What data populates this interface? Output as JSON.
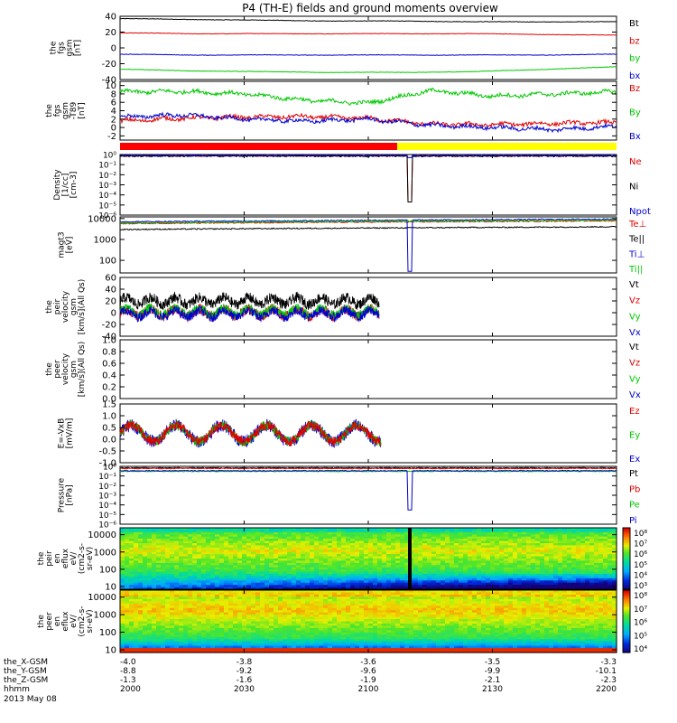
{
  "title": "P4 (TH-E) fields and ground moments overview",
  "colors": {
    "black": "#000000",
    "red": "#e00000",
    "green": "#00c800",
    "blue": "#0000d0",
    "bar_red": "#ff0000",
    "bar_yellow": "#ffff00"
  },
  "chart_data": [
    {
      "type": "line",
      "panel": "fgs_gsm",
      "ylabel": [
        "the",
        "fgs",
        "gsm",
        "[nT]"
      ],
      "ylim": [
        -40,
        40
      ],
      "yticks": [
        "40",
        "20",
        "0",
        "-20",
        "-40"
      ],
      "series": [
        {
          "name": "Bt",
          "color": "black",
          "values": [
            37,
            36,
            35,
            34,
            34,
            33,
            33,
            33
          ]
        },
        {
          "name": "bz",
          "color": "red",
          "values": [
            19,
            18,
            18,
            18,
            18,
            18,
            17,
            16
          ]
        },
        {
          "name": "by",
          "color": "green",
          "values": [
            -27,
            -29,
            -30,
            -31,
            -31,
            -30,
            -27,
            -24
          ]
        },
        {
          "name": "bx",
          "color": "blue",
          "values": [
            -8,
            -9,
            -9,
            -9,
            -9,
            -9,
            -9,
            -8
          ]
        }
      ]
    },
    {
      "type": "line",
      "panel": "fgs_gsm_t89",
      "ylabel": [
        "the",
        "fgs",
        "gsm",
        "-T89",
        "[nT]"
      ],
      "ylim": [
        -3,
        11
      ],
      "yticks": [
        "10",
        "8",
        "6",
        "4",
        "2",
        "0",
        "-2"
      ],
      "series": [
        {
          "name": "Bz",
          "color": "red",
          "values": [
            1.5,
            2.2,
            2.5,
            2.6,
            2.2,
            0.8,
            0.7,
            1.0,
            1.2
          ]
        },
        {
          "name": "By",
          "color": "green",
          "values": [
            8.5,
            8.6,
            8.0,
            6.5,
            5.8,
            8.8,
            7.5,
            8.0,
            8.5
          ]
        },
        {
          "name": "Bx",
          "color": "blue",
          "values": [
            2.5,
            3.0,
            2.0,
            1.5,
            2.0,
            0.5,
            0.0,
            -0.5,
            0.3
          ]
        }
      ]
    },
    {
      "type": "line",
      "panel": "density",
      "ylabel": [
        "Density",
        "[1/cc]",
        "[cm-3]"
      ],
      "scale": "log",
      "ylim": [
        1e-06,
        1
      ],
      "yticks": [
        "10⁰",
        "10⁻¹",
        "10⁻²",
        "10⁻³",
        "10⁻⁴",
        "10⁻⁵",
        "10⁻⁶"
      ],
      "series": [
        {
          "name": "Ne",
          "color": "red"
        },
        {
          "name": "Ni",
          "color": "black"
        },
        {
          "name": "Npot",
          "color": "blue"
        }
      ]
    },
    {
      "type": "line",
      "panel": "temperature",
      "ylabel": [
        "magt3",
        "[eV]"
      ],
      "scale": "log",
      "ylim": [
        25,
        12000
      ],
      "yticks": [
        "10000",
        "1000",
        "100"
      ],
      "series": [
        {
          "name": "Te⊥",
          "color": "red"
        },
        {
          "name": "Te||",
          "color": "black"
        },
        {
          "name": "Ti⊥",
          "color": "blue"
        },
        {
          "name": "Ti||",
          "color": "green"
        }
      ]
    },
    {
      "type": "line",
      "panel": "peir_velocity",
      "ylabel": [
        "the",
        "peir",
        "velocity",
        "gsm",
        "[km/s](All Qs)"
      ],
      "ylim": [
        -40,
        60
      ],
      "yticks": [
        "60",
        "40",
        "20",
        "0",
        "-20",
        "-40"
      ],
      "series": [
        {
          "name": "Vt",
          "color": "black"
        },
        {
          "name": "Vz",
          "color": "red"
        },
        {
          "name": "Vy",
          "color": "green"
        },
        {
          "name": "Vx",
          "color": "blue"
        }
      ]
    },
    {
      "type": "line",
      "panel": "peer_velocity",
      "ylabel": [
        "the",
        "peer",
        "velocity",
        "gsm",
        "[km/s](All Qs)"
      ],
      "ylim": [
        0,
        1
      ],
      "yticks": [
        "1.0",
        "0.8",
        "0.6",
        "0.4",
        "0.2",
        "0.0"
      ],
      "series": [
        {
          "name": "Vt",
          "color": "black"
        },
        {
          "name": "Vz",
          "color": "red"
        },
        {
          "name": "Vy",
          "color": "green"
        },
        {
          "name": "Vx",
          "color": "blue"
        }
      ]
    },
    {
      "type": "line",
      "panel": "efield",
      "ylabel": [
        "E=-VxB",
        "[mV/m]"
      ],
      "ylim": [
        -1,
        1.5
      ],
      "yticks": [
        "1.5",
        "1.0",
        "0.5",
        "0.0",
        "-0.5",
        "-1.0"
      ],
      "series": [
        {
          "name": "Ez",
          "color": "red"
        },
        {
          "name": "Ey",
          "color": "green"
        },
        {
          "name": "Ex",
          "color": "blue"
        }
      ]
    },
    {
      "type": "line",
      "panel": "pressure",
      "ylabel": [
        "Pressure",
        "[nPa]"
      ],
      "scale": "log",
      "ylim": [
        1e-06,
        1
      ],
      "yticks": [
        "10⁰",
        "10⁻¹",
        "10⁻²",
        "10⁻³",
        "10⁻⁴",
        "10⁻⁵",
        "10⁻⁶"
      ],
      "series": [
        {
          "name": "Pt",
          "color": "black"
        },
        {
          "name": "Pb",
          "color": "red"
        },
        {
          "name": "Pe",
          "color": "green"
        },
        {
          "name": "Pi",
          "color": "blue"
        }
      ]
    },
    {
      "type": "heatmap",
      "panel": "ion_spectrogram",
      "ylabel": [
        "the",
        "peir",
        "en",
        "eflux",
        "eV/",
        "(cm2-s-",
        "sr-eV)"
      ],
      "scale": "log",
      "ylim": [
        7,
        25000
      ],
      "yticks": [
        "10000",
        "1000",
        "100",
        "10"
      ],
      "colorbar_labels": [
        "10⁸",
        "10⁷",
        "10⁶",
        "10⁵",
        "10⁴",
        "10³"
      ]
    },
    {
      "type": "heatmap",
      "panel": "electron_spectrogram",
      "ylabel": [
        "the",
        "peer",
        "en",
        "eflux",
        "eV/",
        "(cm2-s-",
        "sr-eV)"
      ],
      "scale": "log",
      "ylim": [
        7,
        25000
      ],
      "yticks": [
        "10000",
        "1000",
        "100",
        "10"
      ],
      "colorbar_labels": [
        "10⁸",
        "10⁷",
        "10⁶",
        "10⁵",
        "10⁴"
      ]
    }
  ],
  "axis": {
    "rows": [
      {
        "label": "the_X-GSM",
        "values": [
          "-4.0",
          "-3.8",
          "-3.6",
          "-3.5",
          "-3.3"
        ]
      },
      {
        "label": "the_Y-GSM",
        "values": [
          "-8.8",
          "-9.2",
          "-9.6",
          "-9.9",
          "-10.1"
        ]
      },
      {
        "label": "the_Z-GSM",
        "values": [
          "-1.3",
          "-1.6",
          "-1.9",
          "-2.1",
          "-2.3"
        ]
      },
      {
        "label": "hhmm",
        "values": [
          "2000",
          "2030",
          "2100",
          "2130",
          "2200"
        ]
      }
    ],
    "date": "2013 May 08"
  }
}
